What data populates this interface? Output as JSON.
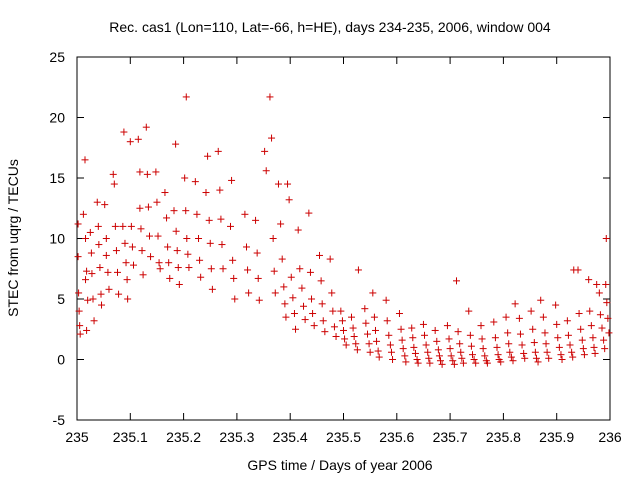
{
  "chart_data": {
    "type": "scatter",
    "title": "Rec. cas1 (Lon=110, Lat=-66, h=HE), days 234-235, 2006, window 004",
    "xlabel": "GPS time / Days of year 2006",
    "ylabel": "STEC from uqrg / TECUs",
    "xlim": [
      235,
      236
    ],
    "ylim": [
      -5,
      25
    ],
    "x_ticks": [
      "235",
      "235.1",
      "235.2",
      "235.3",
      "235.4",
      "235.5",
      "235.6",
      "235.7",
      "235.8",
      "235.9",
      "236"
    ],
    "y_ticks": [
      "-5",
      "0",
      "5",
      "10",
      "15",
      "20",
      "25"
    ],
    "grid": false,
    "marker": "+",
    "color": "#cc0000",
    "series": [
      {
        "points": [
          [
            235.002,
            11.2
          ],
          [
            235.002,
            8.5
          ],
          [
            235.003,
            5.5
          ],
          [
            235.004,
            4.0
          ],
          [
            235.005,
            2.8
          ],
          [
            235.006,
            2.1
          ],
          [
            235.015,
            16.5
          ],
          [
            235.012,
            12.0
          ],
          [
            235.016,
            10.0
          ],
          [
            235.018,
            7.3
          ],
          [
            235.016,
            6.6
          ],
          [
            235.02,
            4.9
          ],
          [
            235.018,
            2.4
          ],
          [
            235.025,
            10.5
          ],
          [
            235.027,
            8.8
          ],
          [
            235.028,
            7.1
          ],
          [
            235.03,
            5.0
          ],
          [
            235.032,
            3.2
          ],
          [
            235.038,
            13.0
          ],
          [
            235.04,
            11.0
          ],
          [
            235.041,
            9.5
          ],
          [
            235.043,
            7.6
          ],
          [
            235.045,
            5.4
          ],
          [
            235.046,
            4.5
          ],
          [
            235.052,
            12.8
          ],
          [
            235.055,
            10.0
          ],
          [
            235.055,
            8.6
          ],
          [
            235.058,
            7.2
          ],
          [
            235.06,
            5.8
          ],
          [
            235.068,
            15.3
          ],
          [
            235.07,
            14.5
          ],
          [
            235.072,
            11.0
          ],
          [
            235.074,
            9.0
          ],
          [
            235.076,
            7.2
          ],
          [
            235.078,
            5.4
          ],
          [
            235.088,
            18.8
          ],
          [
            235.086,
            11.0
          ],
          [
            235.09,
            9.6
          ],
          [
            235.092,
            8.0
          ],
          [
            235.094,
            6.6
          ],
          [
            235.095,
            5.0
          ],
          [
            235.1,
            18.0
          ],
          [
            235.102,
            11.0
          ],
          [
            235.104,
            9.3
          ],
          [
            235.106,
            7.8
          ],
          [
            235.115,
            18.2
          ],
          [
            235.118,
            15.5
          ],
          [
            235.118,
            12.5
          ],
          [
            235.12,
            10.8
          ],
          [
            235.122,
            9.0
          ],
          [
            235.124,
            7.0
          ],
          [
            235.13,
            19.2
          ],
          [
            235.132,
            15.3
          ],
          [
            235.134,
            12.6
          ],
          [
            235.136,
            10.2
          ],
          [
            235.138,
            8.5
          ],
          [
            235.148,
            15.5
          ],
          [
            235.15,
            13.0
          ],
          [
            235.152,
            10.2
          ],
          [
            235.154,
            8.0
          ],
          [
            235.156,
            7.5
          ],
          [
            235.165,
            13.8
          ],
          [
            235.168,
            11.7
          ],
          [
            235.17,
            9.3
          ],
          [
            235.172,
            8.0
          ],
          [
            235.174,
            6.7
          ],
          [
            235.185,
            17.8
          ],
          [
            235.182,
            12.3
          ],
          [
            235.186,
            10.6
          ],
          [
            235.188,
            9.0
          ],
          [
            235.19,
            7.6
          ],
          [
            235.192,
            6.2
          ],
          [
            235.205,
            21.7
          ],
          [
            235.202,
            15.0
          ],
          [
            235.204,
            12.3
          ],
          [
            235.206,
            10.0
          ],
          [
            235.208,
            8.7
          ],
          [
            235.21,
            7.6
          ],
          [
            235.222,
            14.7
          ],
          [
            235.225,
            12.0
          ],
          [
            235.228,
            10.0
          ],
          [
            235.23,
            8.2
          ],
          [
            235.232,
            6.8
          ],
          [
            235.245,
            16.8
          ],
          [
            235.242,
            13.8
          ],
          [
            235.248,
            11.5
          ],
          [
            235.25,
            9.6
          ],
          [
            235.252,
            7.5
          ],
          [
            235.254,
            5.8
          ],
          [
            235.265,
            17.2
          ],
          [
            235.268,
            14.0
          ],
          [
            235.27,
            11.6
          ],
          [
            235.272,
            9.5
          ],
          [
            235.274,
            7.5
          ],
          [
            235.29,
            14.8
          ],
          [
            235.288,
            11.0
          ],
          [
            235.292,
            8.2
          ],
          [
            235.294,
            6.7
          ],
          [
            235.296,
            5.0
          ],
          [
            235.315,
            12.0
          ],
          [
            235.318,
            9.3
          ],
          [
            235.32,
            7.4
          ],
          [
            235.322,
            5.5
          ],
          [
            235.335,
            11.5
          ],
          [
            235.338,
            8.8
          ],
          [
            235.34,
            6.7
          ],
          [
            235.342,
            4.9
          ],
          [
            235.352,
            17.2
          ],
          [
            235.355,
            15.6
          ],
          [
            235.362,
            21.7
          ],
          [
            235.365,
            18.3
          ],
          [
            235.368,
            10.0
          ],
          [
            235.37,
            7.3
          ],
          [
            235.372,
            5.5
          ],
          [
            235.378,
            14.5
          ],
          [
            235.382,
            11.2
          ],
          [
            235.385,
            8.3
          ],
          [
            235.388,
            6.0
          ],
          [
            235.39,
            4.6
          ],
          [
            235.392,
            3.5
          ],
          [
            235.395,
            14.5
          ],
          [
            235.398,
            13.2
          ],
          [
            235.402,
            6.8
          ],
          [
            235.405,
            5.1
          ],
          [
            235.408,
            3.8
          ],
          [
            235.41,
            2.5
          ],
          [
            235.415,
            10.7
          ],
          [
            235.418,
            7.5
          ],
          [
            235.422,
            5.9
          ],
          [
            235.425,
            4.4
          ],
          [
            235.428,
            3.3
          ],
          [
            235.435,
            12.1
          ],
          [
            235.438,
            7.2
          ],
          [
            235.44,
            5.0
          ],
          [
            235.442,
            3.8
          ],
          [
            235.445,
            2.8
          ],
          [
            235.455,
            8.6
          ],
          [
            235.458,
            6.5
          ],
          [
            235.46,
            4.6
          ],
          [
            235.462,
            3.2
          ],
          [
            235.465,
            2.3
          ],
          [
            235.475,
            8.3
          ],
          [
            235.478,
            5.5
          ],
          [
            235.48,
            4.0
          ],
          [
            235.483,
            2.7
          ],
          [
            235.486,
            1.9
          ],
          [
            235.495,
            4.0
          ],
          [
            235.498,
            3.2
          ],
          [
            235.5,
            2.4
          ],
          [
            235.502,
            1.7
          ],
          [
            235.505,
            1.2
          ],
          [
            235.515,
            3.5
          ],
          [
            235.518,
            2.6
          ],
          [
            235.52,
            1.9
          ],
          [
            235.523,
            1.3
          ],
          [
            235.526,
            0.8
          ],
          [
            235.528,
            7.4
          ],
          [
            235.54,
            4.2
          ],
          [
            235.542,
            3.0
          ],
          [
            235.545,
            2.1
          ],
          [
            235.548,
            1.3
          ],
          [
            235.55,
            0.6
          ],
          [
            235.555,
            5.5
          ],
          [
            235.558,
            3.5
          ],
          [
            235.56,
            2.4
          ],
          [
            235.562,
            1.5
          ],
          [
            235.565,
            0.7
          ],
          [
            235.567,
            0.2
          ],
          [
            235.58,
            4.9
          ],
          [
            235.582,
            3.2
          ],
          [
            235.585,
            2.0
          ],
          [
            235.588,
            1.2
          ],
          [
            235.59,
            0.6
          ],
          [
            235.592,
            0.0
          ],
          [
            235.605,
            3.8
          ],
          [
            235.608,
            2.5
          ],
          [
            235.61,
            1.6
          ],
          [
            235.612,
            0.9
          ],
          [
            235.615,
            0.3
          ],
          [
            235.617,
            -0.2
          ],
          [
            235.628,
            2.6
          ],
          [
            235.63,
            1.8
          ],
          [
            235.632,
            1.0
          ],
          [
            235.635,
            0.5
          ],
          [
            235.638,
            0.0
          ],
          [
            235.64,
            -0.3
          ],
          [
            235.65,
            2.9
          ],
          [
            235.652,
            2.0
          ],
          [
            235.655,
            1.2
          ],
          [
            235.658,
            0.6
          ],
          [
            235.66,
            0.1
          ],
          [
            235.662,
            -0.3
          ],
          [
            235.672,
            2.4
          ],
          [
            235.675,
            1.5
          ],
          [
            235.678,
            0.8
          ],
          [
            235.68,
            0.3
          ],
          [
            235.682,
            -0.1
          ],
          [
            235.685,
            -0.4
          ],
          [
            235.695,
            2.8
          ],
          [
            235.698,
            1.7
          ],
          [
            235.7,
            0.9
          ],
          [
            235.702,
            0.3
          ],
          [
            235.705,
            -0.1
          ],
          [
            235.708,
            -0.4
          ],
          [
            235.712,
            6.5
          ],
          [
            235.715,
            2.3
          ],
          [
            235.718,
            1.3
          ],
          [
            235.72,
            0.6
          ],
          [
            235.722,
            0.1
          ],
          [
            235.725,
            -0.3
          ],
          [
            235.735,
            4.0
          ],
          [
            235.738,
            2.0
          ],
          [
            235.74,
            1.1
          ],
          [
            235.742,
            0.4
          ],
          [
            235.745,
            0.0
          ],
          [
            235.748,
            -0.3
          ],
          [
            235.758,
            2.8
          ],
          [
            235.76,
            1.7
          ],
          [
            235.762,
            0.9
          ],
          [
            235.765,
            0.3
          ],
          [
            235.768,
            -0.1
          ],
          [
            235.77,
            -0.3
          ],
          [
            235.782,
            3.1
          ],
          [
            235.785,
            1.8
          ],
          [
            235.788,
            1.0
          ],
          [
            235.79,
            0.4
          ],
          [
            235.792,
            0.0
          ],
          [
            235.795,
            -0.2
          ],
          [
            235.805,
            3.5
          ],
          [
            235.808,
            2.2
          ],
          [
            235.81,
            1.3
          ],
          [
            235.812,
            0.6
          ],
          [
            235.815,
            0.2
          ],
          [
            235.818,
            -0.1
          ],
          [
            235.822,
            4.6
          ],
          [
            235.83,
            3.4
          ],
          [
            235.832,
            2.1
          ],
          [
            235.835,
            1.2
          ],
          [
            235.838,
            0.5
          ],
          [
            235.84,
            0.1
          ],
          [
            235.852,
            4.0
          ],
          [
            235.855,
            2.5
          ],
          [
            235.858,
            1.4
          ],
          [
            235.86,
            0.6
          ],
          [
            235.862,
            0.1
          ],
          [
            235.865,
            -0.2
          ],
          [
            235.87,
            4.9
          ],
          [
            235.875,
            3.5
          ],
          [
            235.878,
            2.2
          ],
          [
            235.88,
            1.3
          ],
          [
            235.882,
            0.6
          ],
          [
            235.885,
            0.1
          ],
          [
            235.898,
            4.5
          ],
          [
            235.9,
            2.9
          ],
          [
            235.902,
            1.8
          ],
          [
            235.905,
            1.0
          ],
          [
            235.908,
            0.4
          ],
          [
            235.91,
            0.0
          ],
          [
            235.92,
            3.2
          ],
          [
            235.922,
            2.0
          ],
          [
            235.925,
            1.2
          ],
          [
            235.928,
            0.6
          ],
          [
            235.93,
            0.2
          ],
          [
            235.932,
            7.4
          ],
          [
            235.94,
            7.4
          ],
          [
            235.942,
            3.8
          ],
          [
            235.945,
            2.5
          ],
          [
            235.948,
            1.6
          ],
          [
            235.95,
            0.9
          ],
          [
            235.952,
            0.4
          ],
          [
            235.96,
            6.6
          ],
          [
            235.962,
            4.0
          ],
          [
            235.965,
            2.8
          ],
          [
            235.968,
            1.8
          ],
          [
            235.97,
            1.0
          ],
          [
            235.972,
            0.5
          ],
          [
            235.975,
            6.2
          ],
          [
            235.98,
            5.5
          ],
          [
            235.982,
            3.7
          ],
          [
            235.985,
            2.6
          ],
          [
            235.988,
            1.6
          ],
          [
            235.99,
            0.9
          ],
          [
            235.993,
            10.0
          ],
          [
            235.992,
            6.2
          ],
          [
            235.994,
            4.7
          ],
          [
            235.996,
            3.4
          ],
          [
            235.998,
            2.2
          ]
        ]
      }
    ]
  }
}
